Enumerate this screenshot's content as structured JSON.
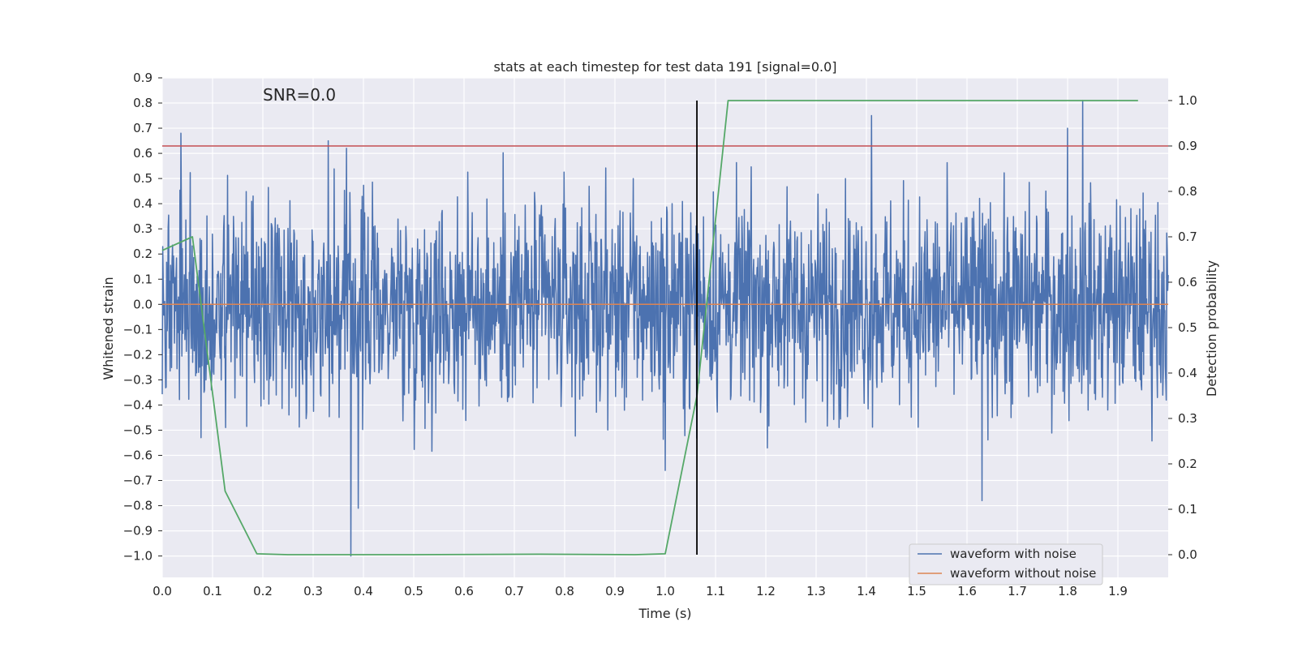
{
  "chart_data": {
    "type": "line",
    "title": "stats at each timestep for test data 191 [signal=0.0]",
    "annotation": "SNR=0.0",
    "xlabel": "Time (s)",
    "ylabel": "Whitened strain",
    "y2label": "Detection probability",
    "xlim": [
      0.0,
      2.0
    ],
    "ylim": [
      -1.085,
      0.9
    ],
    "y2lim": [
      -0.05,
      1.05
    ],
    "xticks": [
      0.0,
      0.1,
      0.2,
      0.3,
      0.4,
      0.5,
      0.6,
      0.7,
      0.8,
      0.9,
      1.0,
      1.1,
      1.2,
      1.3,
      1.4,
      1.5,
      1.6,
      1.7,
      1.8,
      1.9
    ],
    "xtick_labels": [
      "0.0",
      "0.1",
      "0.2",
      "0.3",
      "0.4",
      "0.5",
      "0.6",
      "0.7",
      "0.8",
      "0.9",
      "1.0",
      "1.1",
      "1.2",
      "1.3",
      "1.4",
      "1.5",
      "1.6",
      "1.7",
      "1.8",
      "1.9"
    ],
    "yticks": [
      0.9,
      0.8,
      0.7,
      0.6,
      0.5,
      0.4,
      0.3,
      0.2,
      0.1,
      0.0,
      -0.1,
      -0.2,
      -0.3,
      -0.4,
      -0.5,
      -0.6,
      -0.7,
      -0.8,
      -0.9,
      -1.0
    ],
    "ytick_labels": [
      "0.9",
      "0.8",
      "0.7",
      "0.6",
      "0.5",
      "0.4",
      "0.3",
      "0.2",
      "0.1",
      "0.0",
      "−0.1",
      "−0.2",
      "−0.3",
      "−0.4",
      "−0.5",
      "−0.6",
      "−0.7",
      "−0.8",
      "−0.9",
      "−1.0"
    ],
    "y2ticks": [
      1.0,
      0.9,
      0.8,
      0.7,
      0.6,
      0.5,
      0.4,
      0.3,
      0.2,
      0.1,
      0.0
    ],
    "y2tick_labels": [
      "1.0",
      "0.9",
      "0.8",
      "0.7",
      "0.6",
      "0.5",
      "0.4",
      "0.3",
      "0.2",
      "0.1",
      "0.0"
    ],
    "grid": true,
    "legend_position": "bottom-right",
    "series": [
      {
        "name": "waveform with noise",
        "color": "#4c72b0",
        "sample_rate_hz": 1024,
        "noise_scale": 0.21,
        "extremes": [
          {
            "x": 0.037,
            "y": 0.68
          },
          {
            "x": 0.33,
            "y": 0.65
          },
          {
            "x": 0.375,
            "y": -1.0
          },
          {
            "x": 0.39,
            "y": -0.81
          },
          {
            "x": 1.0,
            "y": -0.66
          },
          {
            "x": 1.41,
            "y": 0.75
          },
          {
            "x": 1.63,
            "y": -0.78
          },
          {
            "x": 1.8,
            "y": 0.7
          },
          {
            "x": 1.83,
            "y": 0.81
          }
        ]
      },
      {
        "name": "waveform without noise",
        "color": "#dd8452",
        "x": [
          0.0,
          2.0
        ],
        "y": [
          0.0,
          0.0
        ]
      },
      {
        "color": "#55a868",
        "axis": "right",
        "x": [
          0.0,
          0.06,
          0.125,
          0.188,
          0.25,
          0.5,
          0.75,
          0.94,
          1.0,
          1.063,
          1.125,
          1.94
        ],
        "y": [
          0.67,
          0.7,
          0.14,
          0.002,
          0.0,
          0.0,
          0.001,
          0.0,
          0.002,
          0.35,
          1.0,
          1.0
        ]
      },
      {
        "color": "#c44e52",
        "axis": "right",
        "x": [
          0.0,
          2.0
        ],
        "y": [
          0.9,
          0.9
        ]
      }
    ],
    "vertical_marker": {
      "x": 1.063,
      "color": "#000000",
      "y2_range": [
        0.0,
        1.0
      ]
    }
  }
}
